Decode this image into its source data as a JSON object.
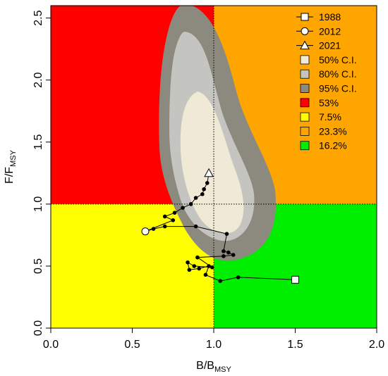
{
  "chart_data": {
    "type": "scatter",
    "xlabel": "B/B",
    "xlabel_sub": "MSY",
    "ylabel": "F/F",
    "ylabel_sub": "MSY",
    "xlim": [
      0.0,
      2.0
    ],
    "ylim": [
      0.0,
      2.6
    ],
    "x_ticks": [
      "0.0",
      "0.5",
      "1.0",
      "1.5",
      "2.0"
    ],
    "y_ticks": [
      "0.0",
      "0.5",
      "1.0",
      "1.5",
      "2.0",
      "2.5"
    ],
    "quadrant_colors": {
      "red": "#ff0000",
      "yellow": "#ffff00",
      "orange": "#ffa500",
      "green": "#00ee00"
    },
    "ci_colors": {
      "c50": "#efe9d5",
      "c80": "#c4c4c0",
      "c95": "#8c8a7e"
    },
    "legend": [
      {
        "label": "1988",
        "marker": "square"
      },
      {
        "label": "2012",
        "marker": "circle"
      },
      {
        "label": "2021",
        "marker": "triangle"
      },
      {
        "label": "50% C.I.",
        "swatch": "#efe9d5"
      },
      {
        "label": "80% C.I.",
        "swatch": "#c4c4c0"
      },
      {
        "label": "95% C.I.",
        "swatch": "#8c8a7e"
      },
      {
        "label": "53%",
        "swatch": "#ff0000"
      },
      {
        "label": "7.5%",
        "swatch": "#ffff00"
      },
      {
        "label": "23.3%",
        "swatch": "#ffa500"
      },
      {
        "label": "16.2%",
        "swatch": "#00ee00"
      }
    ],
    "trajectory": [
      {
        "x": 1.5,
        "y": 0.39
      },
      {
        "x": 1.15,
        "y": 0.41
      },
      {
        "x": 1.04,
        "y": 0.38
      },
      {
        "x": 0.95,
        "y": 0.43
      },
      {
        "x": 0.97,
        "y": 0.5
      },
      {
        "x": 0.91,
        "y": 0.48
      },
      {
        "x": 0.85,
        "y": 0.47
      },
      {
        "x": 0.84,
        "y": 0.53
      },
      {
        "x": 0.88,
        "y": 0.5
      },
      {
        "x": 0.99,
        "y": 0.49
      },
      {
        "x": 0.9,
        "y": 0.57
      },
      {
        "x": 1.06,
        "y": 0.58
      },
      {
        "x": 1.12,
        "y": 0.59
      },
      {
        "x": 1.09,
        "y": 0.61
      },
      {
        "x": 1.06,
        "y": 0.62
      },
      {
        "x": 1.08,
        "y": 0.76
      },
      {
        "x": 0.89,
        "y": 0.82
      },
      {
        "x": 0.7,
        "y": 0.82
      },
      {
        "x": 0.63,
        "y": 0.8
      },
      {
        "x": 0.58,
        "y": 0.78
      },
      {
        "x": 0.75,
        "y": 0.87
      },
      {
        "x": 0.7,
        "y": 0.9
      },
      {
        "x": 0.76,
        "y": 0.93
      },
      {
        "x": 0.81,
        "y": 0.97
      },
      {
        "x": 0.86,
        "y": 1.0
      },
      {
        "x": 0.89,
        "y": 1.05
      },
      {
        "x": 0.93,
        "y": 1.08
      },
      {
        "x": 0.94,
        "y": 1.12
      },
      {
        "x": 0.96,
        "y": 1.17
      },
      {
        "x": 0.97,
        "y": 1.25
      }
    ],
    "first_point": {
      "x": 1.5,
      "y": 0.39,
      "label": "1988"
    },
    "mid_point": {
      "x": 0.58,
      "y": 0.78,
      "label": "2012"
    },
    "last_point": {
      "x": 0.97,
      "y": 1.25,
      "label": "2021"
    },
    "reference_lines": {
      "x": 1.0,
      "y": 1.0
    }
  }
}
